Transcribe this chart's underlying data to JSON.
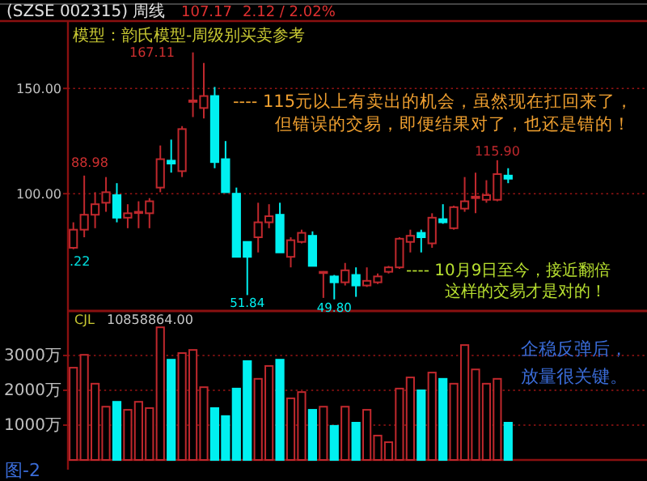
{
  "chart_data": [
    {
      "type": "candlestick",
      "title": "(SZSE 002315) 周线",
      "subtitle": "模型：韵氏模型-周级别买卖参考",
      "categories": [
        null,
        null,
        null,
        null,
        null,
        null,
        null,
        null,
        null,
        null,
        null,
        null,
        null,
        null,
        null,
        null,
        null,
        null,
        null,
        null,
        null,
        null,
        null,
        null,
        null,
        null,
        null,
        null,
        null,
        null,
        null,
        null,
        null,
        null,
        null,
        null,
        null,
        null,
        null,
        null,
        null
      ],
      "ohlc": [
        [
          74.3,
          86.4,
          73.6,
          82.9
        ],
        [
          82.9,
          108.6,
          79.3,
          90
        ],
        [
          90,
          100.7,
          83.6,
          95
        ],
        [
          95.7,
          107.9,
          91.4,
          100.7
        ],
        [
          99.3,
          105,
          86.4,
          88.6
        ],
        [
          88.6,
          95,
          83.6,
          90.7
        ],
        [
          91,
          96.4,
          83.6,
          91.4
        ],
        [
          90.7,
          97.9,
          83.6,
          96.4
        ],
        [
          102.9,
          122.9,
          100.7,
          116.4
        ],
        [
          115.7,
          125.7,
          110,
          114.3
        ],
        [
          110.7,
          132.1,
          107.9,
          130.7
        ],
        [
          143.6,
          167.11,
          136.4,
          144.3
        ],
        [
          140.7,
          162.1,
          135.7,
          146.4
        ],
        [
          146.4,
          150.7,
          112.1,
          115
        ],
        [
          116.4,
          125,
          100.7,
          100.7
        ],
        [
          100,
          102.9,
          70,
          70
        ],
        [
          77.1,
          77.1,
          51.84,
          70
        ],
        [
          79.3,
          95.7,
          72.1,
          86.4
        ],
        [
          86.4,
          95,
          83.6,
          89.3
        ],
        [
          90,
          95.7,
          72.1,
          72.1
        ],
        [
          70,
          79.3,
          65,
          77.9
        ],
        [
          77.1,
          82.9,
          76.4,
          81.4
        ],
        [
          80,
          82.1,
          65.7,
          65.7
        ],
        [
          62.5,
          63.2,
          50.5,
          62.9
        ],
        [
          60.7,
          61.4,
          49.8,
          57.9
        ],
        [
          57.9,
          67.1,
          56.4,
          63.6
        ],
        [
          61.4,
          65,
          51,
          56.4
        ],
        [
          56.4,
          65,
          55.7,
          58.6
        ],
        [
          57.9,
          62.1,
          57.1,
          60.7
        ],
        [
          62.9,
          65.7,
          62.1,
          65
        ],
        [
          65,
          79.3,
          64.3,
          78.6
        ],
        [
          77.1,
          82.9,
          72.1,
          80
        ],
        [
          81.4,
          82.9,
          72.1,
          79.3
        ],
        [
          76.4,
          90.7,
          74.3,
          88.6
        ],
        [
          87.9,
          95,
          85.7,
          86.4
        ],
        [
          83.6,
          94.3,
          82.9,
          93.6
        ],
        [
          92.9,
          107.9,
          91.4,
          96.4
        ],
        [
          97.9,
          110,
          90.7,
          98.6
        ],
        [
          97.1,
          106.4,
          95.7,
          99.3
        ],
        [
          97.1,
          115.9,
          96.4,
          109.3
        ],
        [
          108.6,
          112.1,
          105,
          107.1
        ]
      ],
      "colors": [
        "#c0282d",
        "#c0282d",
        "#c0282d",
        "#c0282d",
        "#00f0f0",
        "#c0282d",
        "#c0282d",
        "#c0282d",
        "#c0282d",
        "#00f0f0",
        "#c0282d",
        "#c0282d",
        "#c0282d",
        "#00f0f0",
        "#00f0f0",
        "#00f0f0",
        "#00f0f0",
        "#c0282d",
        "#c0282d",
        "#00f0f0",
        "#c0282d",
        "#c0282d",
        "#00f0f0",
        "#c0282d",
        "#00f0f0",
        "#c0282d",
        "#00f0f0",
        "#c0282d",
        "#c0282d",
        "#c0282d",
        "#c0282d",
        "#c0282d",
        "#00f0f0",
        "#c0282d",
        "#00f0f0",
        "#c0282d",
        "#c0282d",
        "#c0282d",
        "#c0282d",
        "#c0282d",
        "#00f0f0"
      ],
      "ylim": [
        44.3,
        182
      ],
      "yticks": [
        {
          "value": 150,
          "label": "150.00"
        },
        {
          "value": 100,
          "label": "100.00"
        }
      ],
      "grid": "y",
      "tick_labels": "y",
      "annotations": [
        "167.11",
        "88.98",
        ".22",
        {
          "text": "51.84",
          "y": 51.84
        },
        {
          "text": "49.80",
          "y": 49.8
        },
        {
          "text": "115.90",
          "y": 115.9
        },
        "107.17",
        "2.12 / 2.02%",
        "---- 115元以上有卖出的机会，虽然现在扛回来了，",
        "但错误的交易，即便结果对了，也还是错的！",
        "---- 10月9日至今，接近翻倍",
        "这样的交易才是对的！"
      ]
    },
    {
      "type": "bar",
      "title": "CJL",
      "subtitle": "10858864.00",
      "categories": [
        null,
        null,
        null,
        null,
        null,
        null,
        null,
        null,
        null,
        null,
        null,
        null,
        null,
        null,
        null,
        null,
        null,
        null,
        null,
        null,
        null,
        null,
        null,
        null,
        null,
        null,
        null,
        null,
        null,
        null,
        null,
        null,
        null,
        null,
        null,
        null,
        null,
        null,
        null,
        null,
        null
      ],
      "values": [
        2650,
        3020,
        2190,
        1530,
        1670,
        1440,
        1670,
        1490,
        3810,
        2880,
        3070,
        3160,
        2090,
        1490,
        1260,
        2050,
        2840,
        2330,
        2700,
        2880,
        1770,
        1950,
        1440,
        1530,
        980,
        1530,
        1070,
        1440,
        700,
        510,
        2050,
        2370,
        2000,
        2510,
        2330,
        2190,
        3300,
        2600,
        2190,
        2330,
        1070
      ],
      "colors": [
        "#c0282d",
        "#c0282d",
        "#c0282d",
        "#c0282d",
        "#00f0f0",
        "#c0282d",
        "#c0282d",
        "#c0282d",
        "#c0282d",
        "#00f0f0",
        "#c0282d",
        "#c0282d",
        "#c0282d",
        "#00f0f0",
        "#00f0f0",
        "#00f0f0",
        "#00f0f0",
        "#c0282d",
        "#c0282d",
        "#00f0f0",
        "#c0282d",
        "#c0282d",
        "#00f0f0",
        "#c0282d",
        "#00f0f0",
        "#c0282d",
        "#00f0f0",
        "#c0282d",
        "#c0282d",
        "#c0282d",
        "#c0282d",
        "#c0282d",
        "#00f0f0",
        "#c0282d",
        "#00f0f0",
        "#c0282d",
        "#c0282d",
        "#c0282d",
        "#c0282d",
        "#c0282d",
        "#00f0f0"
      ],
      "ylim": [
        0,
        4280
      ],
      "yticks": [
        {
          "value": 3000,
          "label": "3000万"
        },
        {
          "value": 2000,
          "label": "2000万"
        },
        {
          "value": 1000,
          "label": "1000万"
        }
      ],
      "grid": "y",
      "tick_labels": "y",
      "annotations": [
        "企稳反弹后，",
        "放量很关键。",
        "图-2"
      ]
    }
  ]
}
